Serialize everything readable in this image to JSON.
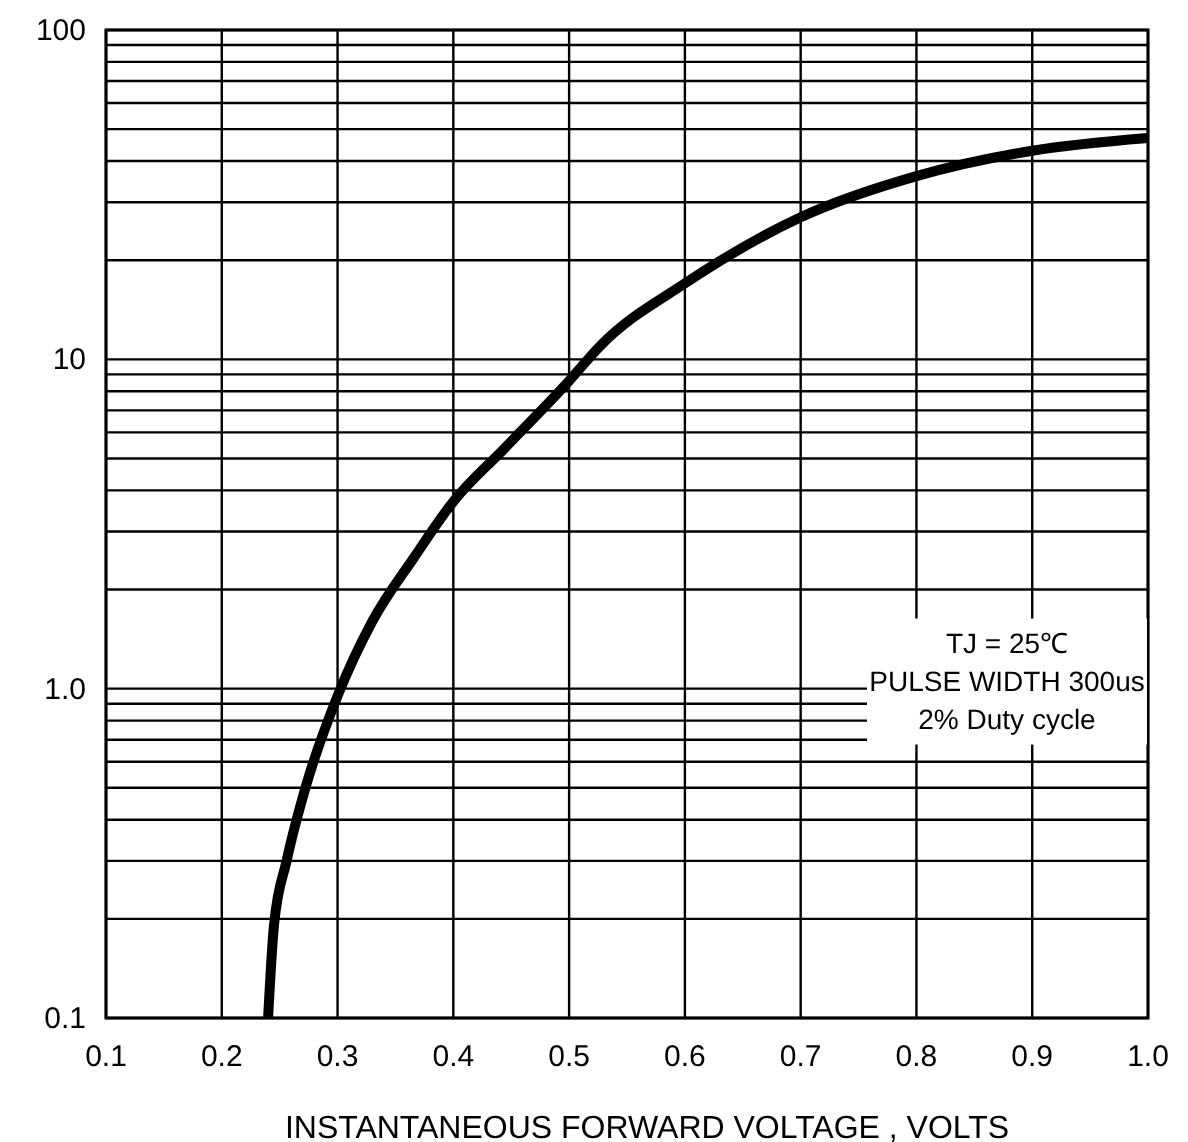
{
  "chart_data": {
    "type": "line",
    "xlabel": "INSTANTANEOUS FORWARD VOLTAGE , VOLTS",
    "annotations": [
      "TJ = 25℃",
      "PULSE WIDTH 300us",
      "2% Duty cycle"
    ],
    "log": "y",
    "grid": true,
    "marker": "none",
    "line_style": "solid",
    "xlim": [
      0.1,
      1.0
    ],
    "xticks": [
      0.1,
      0.2,
      0.3,
      0.4,
      0.5,
      0.6,
      0.7,
      0.8,
      0.9,
      {
        "value": 1.0,
        "label": "1.0"
      }
    ],
    "ylim": [
      0.1,
      100
    ],
    "yticks": [
      0.1,
      {
        "value": 0.2,
        "label": null
      },
      {
        "value": 0.3,
        "label": null
      },
      {
        "value": 0.4,
        "label": null
      },
      {
        "value": 0.5,
        "label": null
      },
      {
        "value": 0.6,
        "label": null
      },
      {
        "value": 0.7,
        "label": null
      },
      {
        "value": 0.8,
        "label": null
      },
      {
        "value": 0.9,
        "label": null
      },
      {
        "value": 1,
        "label": "1.0"
      },
      {
        "value": 2,
        "label": null
      },
      {
        "value": 3,
        "label": null
      },
      {
        "value": 4,
        "label": null
      },
      {
        "value": 5,
        "label": null
      },
      {
        "value": 6,
        "label": null
      },
      {
        "value": 7,
        "label": null
      },
      {
        "value": 8,
        "label": null
      },
      {
        "value": 9,
        "label": null
      },
      10,
      {
        "value": 20,
        "label": null
      },
      {
        "value": 30,
        "label": null
      },
      {
        "value": 40,
        "label": null
      },
      {
        "value": 50,
        "label": null
      },
      {
        "value": 60,
        "label": null
      },
      {
        "value": 70,
        "label": null
      },
      {
        "value": 80,
        "label": null
      },
      {
        "value": 90,
        "label": null
      },
      100
    ],
    "x": [
      0.24,
      0.245,
      0.256,
      0.273,
      0.3,
      0.33,
      0.366,
      0.4,
      0.445,
      0.5,
      0.527,
      0.6,
      0.7,
      0.8,
      0.9,
      1.0
    ],
    "series": [
      {
        "color": "#000000",
        "values": [
          0.1,
          0.19,
          0.3,
          0.51,
          0.95,
          1.6,
          2.5,
          3.7,
          5.4,
          8.6,
          11,
          17,
          27,
          36,
          43,
          47
        ]
      }
    ]
  }
}
